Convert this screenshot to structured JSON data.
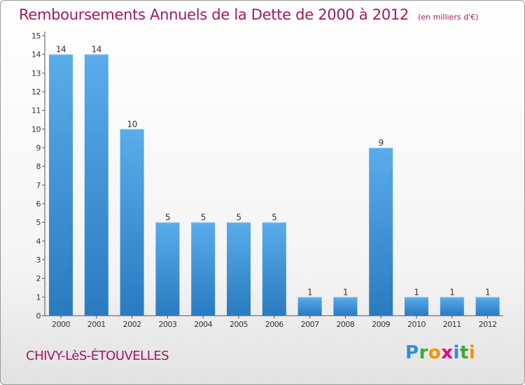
{
  "chart_data": {
    "type": "bar",
    "title": "Remboursements Annuels de la Dette de 2000 à 2012",
    "unit": "(en milliers d'€)",
    "categories": [
      "2000",
      "2001",
      "2002",
      "2003",
      "2004",
      "2005",
      "2006",
      "2007",
      "2008",
      "2009",
      "2010",
      "2011",
      "2012"
    ],
    "values": [
      14,
      14,
      10,
      5,
      5,
      5,
      5,
      1,
      1,
      9,
      1,
      1,
      1
    ],
    "value_labels": [
      "14",
      "14",
      "10",
      "5",
      "5",
      "5",
      "5",
      "1",
      "1",
      "9",
      "1",
      "1",
      "1"
    ],
    "y_ticks": [
      "0",
      "1",
      "2",
      "3",
      "4",
      "5",
      "6",
      "7",
      "8",
      "9",
      "10",
      "11",
      "12",
      "13",
      "14",
      "15"
    ],
    "ylim": [
      0,
      15
    ],
    "grid": false,
    "legend": "none",
    "bar_color_top": "#5aacea",
    "bar_color_bottom": "#2a7ac0"
  },
  "commune_name": "CHIVY-LèS-ÉTOUVELLES",
  "logo": {
    "text": "Proxiti",
    "letters": [
      "P",
      "r",
      "o",
      "x",
      "i",
      "t",
      "i"
    ],
    "colors": [
      "#2e8fd6",
      "#3aaa35",
      "#f39200",
      "#e6007e",
      "#2e8fd6",
      "#3aaa35",
      "#f39200"
    ]
  }
}
